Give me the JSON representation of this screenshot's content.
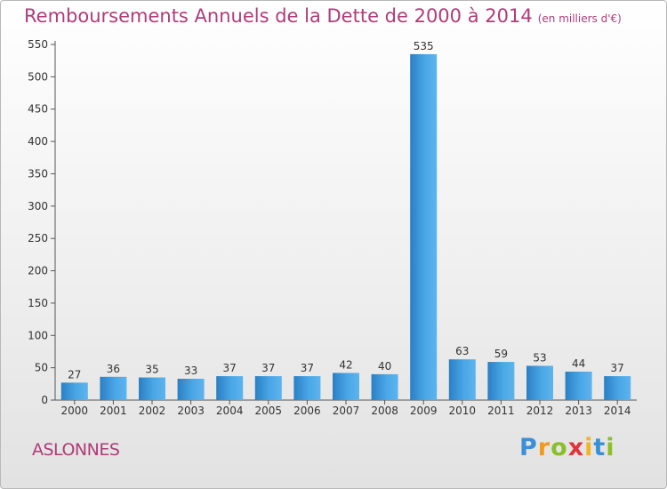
{
  "chart_data": {
    "type": "bar",
    "title": "Remboursements Annuels de la Dette de 2000 à 2014",
    "unit_note": "(en milliers d'€)",
    "categories": [
      "2000",
      "2001",
      "2002",
      "2003",
      "2004",
      "2005",
      "2006",
      "2007",
      "2008",
      "2009",
      "2010",
      "2011",
      "2012",
      "2013",
      "2014"
    ],
    "values": [
      27,
      36,
      35,
      33,
      37,
      37,
      37,
      42,
      40,
      535,
      63,
      59,
      53,
      44,
      37
    ],
    "ylim": [
      0,
      550
    ],
    "yticks": [
      0,
      50,
      100,
      150,
      200,
      250,
      300,
      350,
      400,
      450,
      500,
      550
    ],
    "xlabel": "",
    "ylabel": "",
    "grid": false,
    "bar_color": "#3d97d8"
  },
  "location": "ASLONNES",
  "logo": {
    "letters": [
      "P",
      "r",
      "o",
      "x",
      "i",
      "t",
      "i"
    ],
    "colors": [
      "#3a8fd6",
      "#f29a1f",
      "#8bbf2a",
      "#e0343a",
      "#f2b51f",
      "#3a8fd6",
      "#8bbf2a"
    ]
  }
}
